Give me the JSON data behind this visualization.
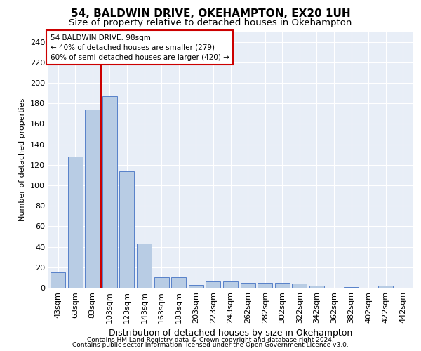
{
  "title": "54, BALDWIN DRIVE, OKEHAMPTON, EX20 1UH",
  "subtitle": "Size of property relative to detached houses in Okehampton",
  "xlabel": "Distribution of detached houses by size in Okehampton",
  "ylabel": "Number of detached properties",
  "categories": [
    "43sqm",
    "63sqm",
    "83sqm",
    "103sqm",
    "123sqm",
    "143sqm",
    "163sqm",
    "183sqm",
    "203sqm",
    "223sqm",
    "243sqm",
    "262sqm",
    "282sqm",
    "302sqm",
    "322sqm",
    "342sqm",
    "362sqm",
    "382sqm",
    "402sqm",
    "422sqm",
    "442sqm"
  ],
  "values": [
    15,
    128,
    174,
    187,
    114,
    43,
    10,
    10,
    3,
    7,
    7,
    5,
    5,
    5,
    4,
    2,
    0,
    1,
    0,
    2,
    0
  ],
  "bar_color": "#b8cce4",
  "bar_edge_color": "#4472c4",
  "vline_color": "#cc0000",
  "vline_x": 2.5,
  "annotation_title": "54 BALDWIN DRIVE: 98sqm",
  "annotation_line1": "← 40% of detached houses are smaller (279)",
  "annotation_line2": "60% of semi-detached houses are larger (420) →",
  "annotation_box_facecolor": "#ffffff",
  "annotation_box_edgecolor": "#cc0000",
  "ylim": [
    0,
    250
  ],
  "yticks": [
    0,
    20,
    40,
    60,
    80,
    100,
    120,
    140,
    160,
    180,
    200,
    220,
    240
  ],
  "plot_bg_color": "#e8eef7",
  "fig_bg_color": "#ffffff",
  "grid_color": "#ffffff",
  "title_fontsize": 11,
  "subtitle_fontsize": 9.5,
  "xlabel_fontsize": 9,
  "ylabel_fontsize": 8,
  "xtick_fontsize": 7,
  "ytick_fontsize": 8,
  "annotation_fontsize": 7.5,
  "footer_fontsize": 6.5,
  "footer1": "Contains HM Land Registry data © Crown copyright and database right 2024.",
  "footer2": "Contains public sector information licensed under the Open Government Licence v3.0."
}
